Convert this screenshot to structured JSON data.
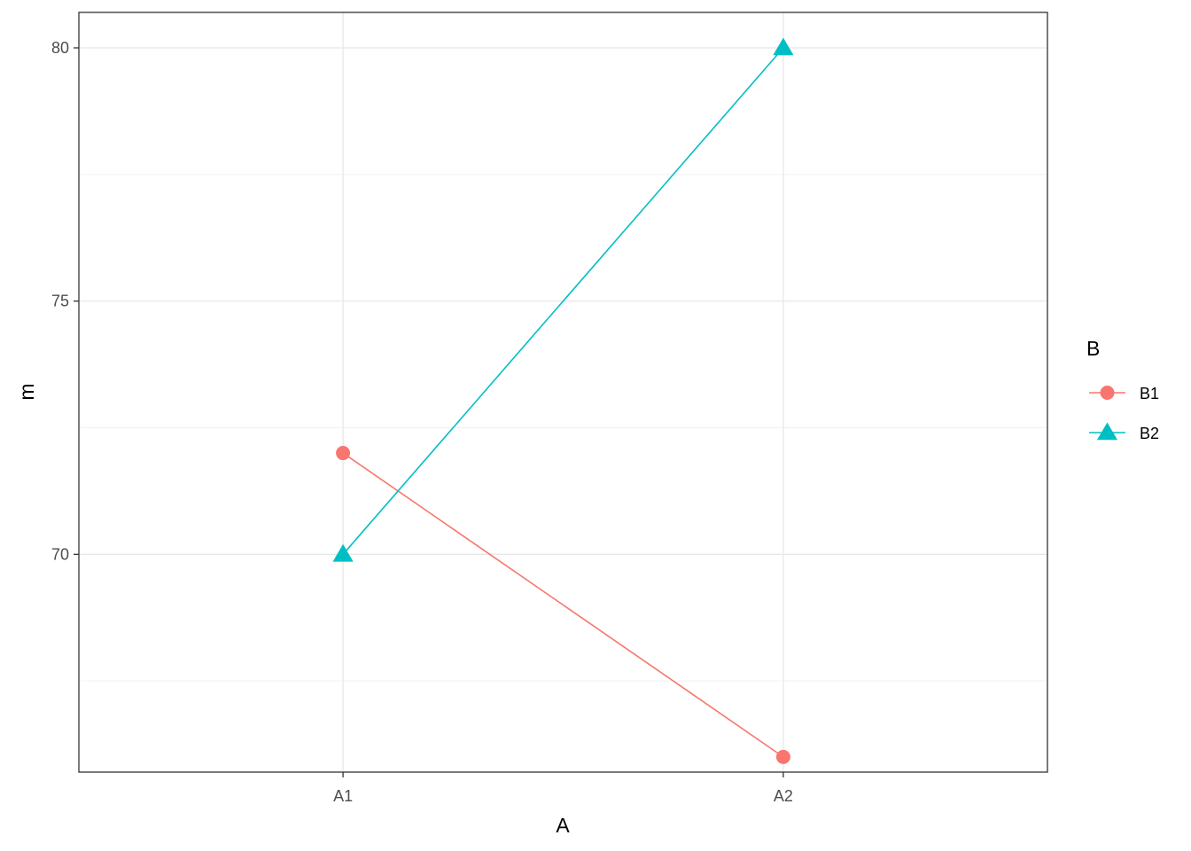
{
  "chart_data": {
    "type": "line",
    "title": "",
    "xlabel": "A",
    "ylabel": "m",
    "categories": [
      "A1",
      "A2"
    ],
    "ylim": [
      65.7,
      80.7
    ],
    "yticks": [
      70,
      75,
      80
    ],
    "grid": true,
    "legend": {
      "title": "B",
      "placement": "right"
    },
    "series": [
      {
        "name": "B1",
        "values": [
          72,
          66
        ],
        "color": "#F8766D",
        "marker": "circle"
      },
      {
        "name": "B2",
        "values": [
          70,
          80
        ],
        "color": "#00BFC4",
        "marker": "triangle"
      }
    ]
  }
}
